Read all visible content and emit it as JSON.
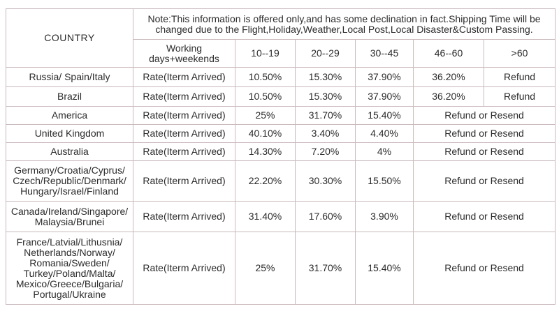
{
  "country_header": "COUNTRY",
  "note": "Note:This information is offered only,and has some declination in fact.Shipping Time will be changed due to the Flight,Holiday,Weather,Local Post,Local Disaster&Custom Passing.",
  "working_header": "Working days+weekends",
  "ranges": [
    "10--19",
    "20--29",
    "30--45",
    "46--60",
    ">60"
  ],
  "rate_label": "Rate(Iterm Arrived)",
  "rows": [
    {
      "country": "Russia/ Spain/Italy",
      "values": [
        "10.50%",
        "15.30%",
        "37.90%",
        "36.20%"
      ],
      "tail": "Refund"
    },
    {
      "country": "Brazil",
      "values": [
        "10.50%",
        "15.30%",
        "37.90%",
        "36.20%"
      ],
      "tail": "Refund"
    },
    {
      "country": "America",
      "values": [
        "25%",
        "31.70%",
        "15.40%"
      ],
      "tail": "Refund or Resend"
    },
    {
      "country": "United Kingdom",
      "values": [
        "40.10%",
        "3.40%",
        "4.40%"
      ],
      "tail": "Refund or Resend"
    },
    {
      "country": "Australia",
      "values": [
        "14.30%",
        "7.20%",
        "4%"
      ],
      "tail": "Refund or Resend"
    },
    {
      "country": "Germany/Croatia/Cyprus/ Czech/Republic/Denmark/ Hungary/Israel/Finland",
      "values": [
        "22.20%",
        "30.30%",
        "15.50%"
      ],
      "tail": "Refund or Resend"
    },
    {
      "country": "Canada/Ireland/Singapore/ Malaysia/Brunei",
      "values": [
        "31.40%",
        "17.60%",
        "3.90%"
      ],
      "tail": "Refund or Resend"
    },
    {
      "country": "France/Latvial/Lithusnia/ Netherlands/Norway/ Romania/Sweden/ Turkey/Poland/Malta/ Mexico/Greece/Bulgaria/ Portugal/Ukraine",
      "values": [
        "25%",
        "31.70%",
        "15.40%"
      ],
      "tail": "Refund or Resend"
    }
  ]
}
